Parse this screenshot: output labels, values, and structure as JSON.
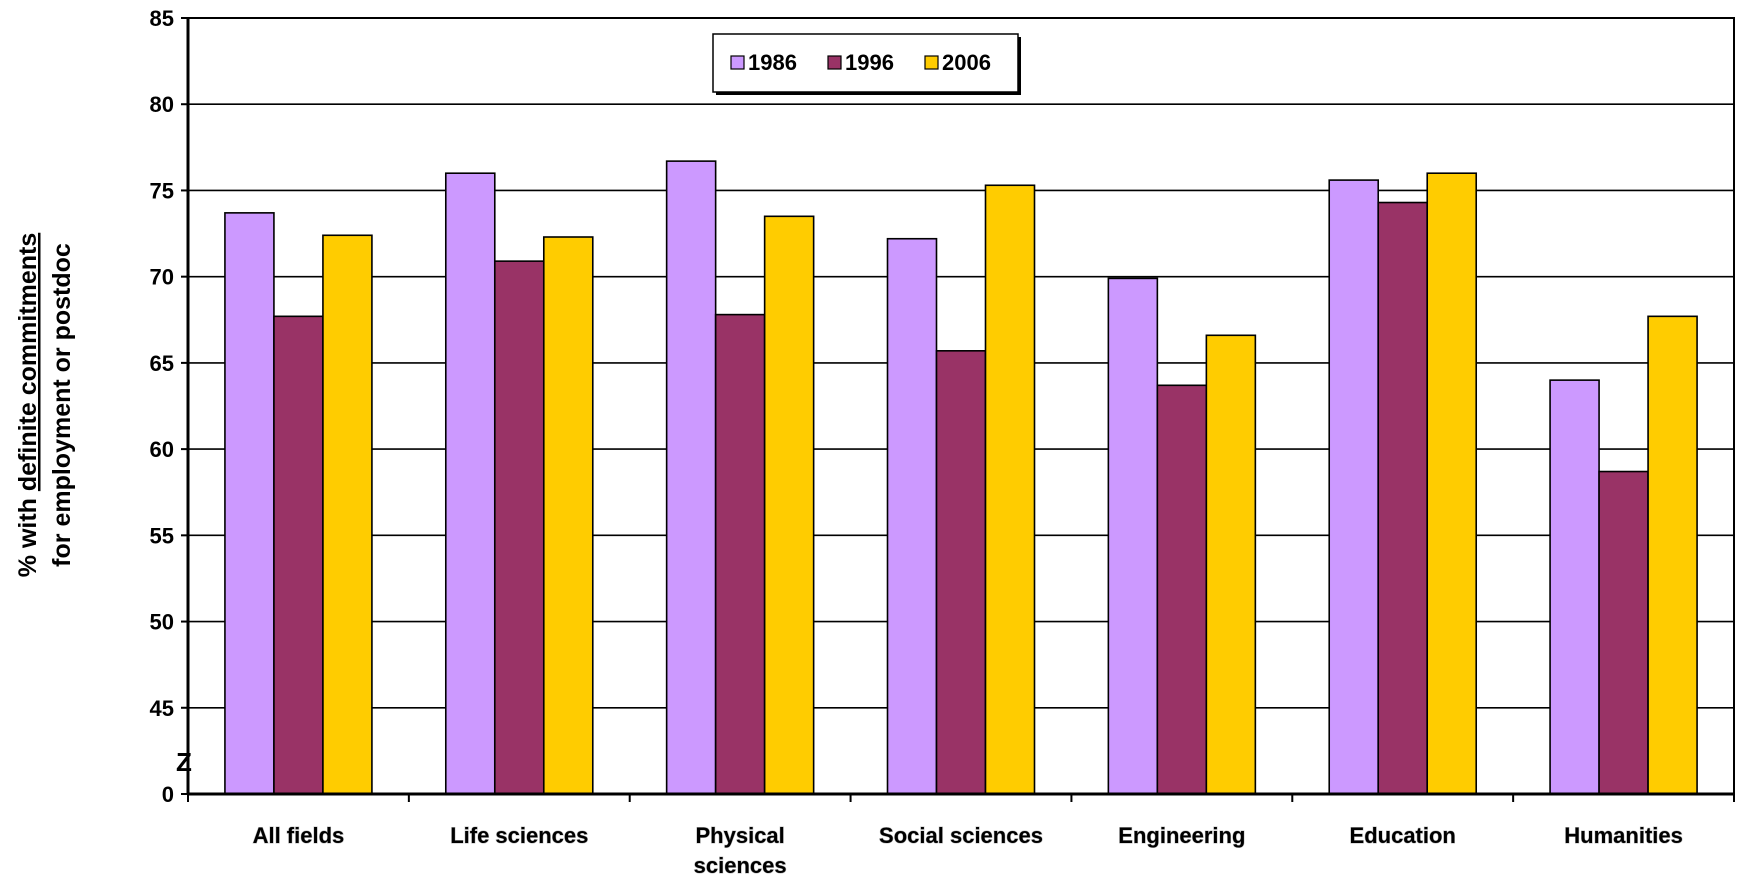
{
  "chart_data": {
    "type": "bar",
    "title": "",
    "ylabel": {
      "prefix": "% with ",
      "underlined": "definite commitments",
      "line2": "for employment or postdoc"
    },
    "xlabel": "",
    "categories": [
      [
        "All fields"
      ],
      [
        "Life sciences"
      ],
      [
        "Physical",
        "sciences"
      ],
      [
        "Social sciences"
      ],
      [
        "Engineering"
      ],
      [
        "Education"
      ],
      [
        "Humanities"
      ]
    ],
    "series": [
      {
        "name": "1986",
        "color": "#cc99ff",
        "values": [
          73.7,
          76.0,
          76.7,
          72.2,
          69.9,
          75.6,
          64.0
        ]
      },
      {
        "name": "1996",
        "color": "#993366",
        "values": [
          67.7,
          70.9,
          67.8,
          65.7,
          63.7,
          74.3,
          58.7
        ]
      },
      {
        "name": "2006",
        "color": "#ffcc00",
        "values": [
          72.4,
          72.3,
          73.5,
          75.3,
          66.6,
          76.0,
          67.7
        ]
      }
    ],
    "y_ticks": [
      "0",
      "45",
      "50",
      "55",
      "60",
      "65",
      "70",
      "75",
      "80",
      "85"
    ],
    "ylim": [
      40,
      85
    ],
    "axis_break": {
      "label": "Z",
      "value": 0
    },
    "grid": true,
    "legend_position": "top-center"
  }
}
